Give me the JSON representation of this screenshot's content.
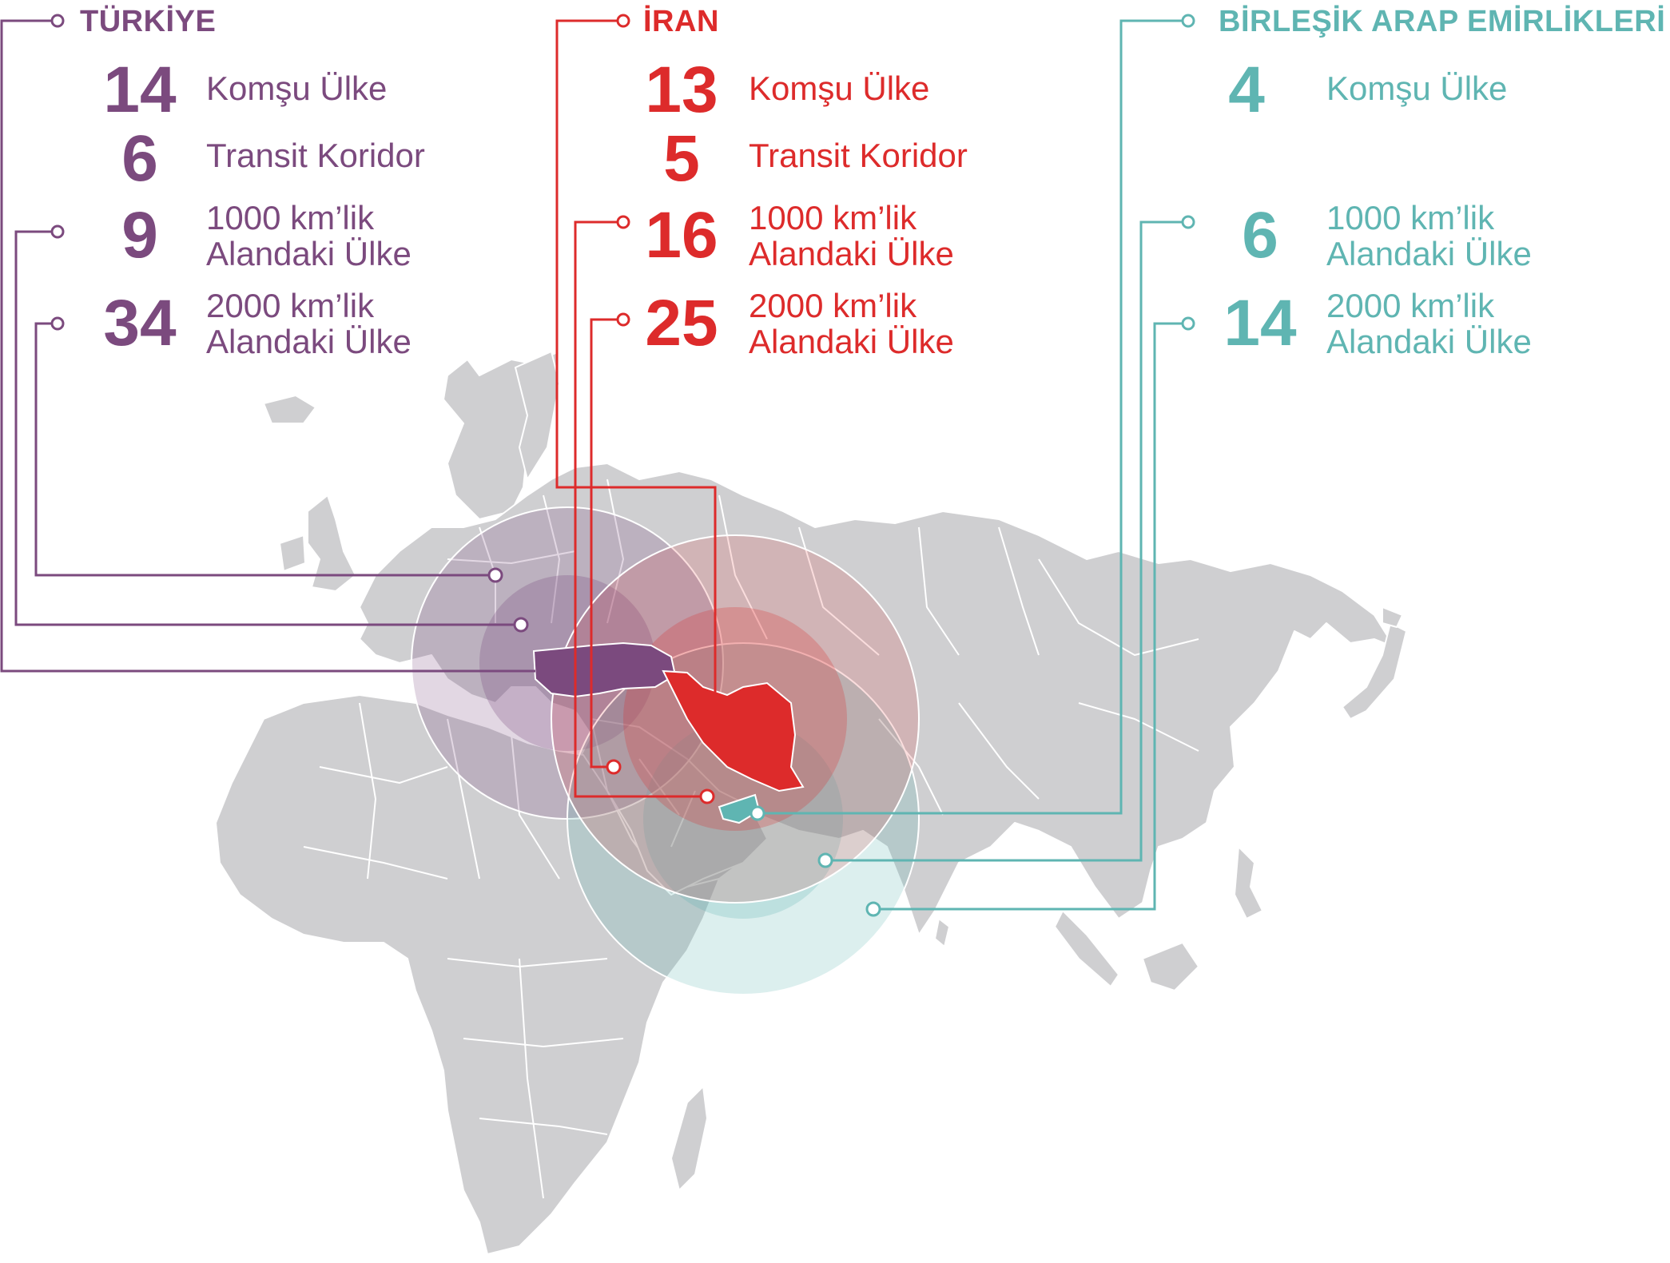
{
  "colors": {
    "turkiye": "#7b4a7e",
    "iran": "#dd2b2b",
    "uae": "#5fb5b2",
    "land": "#cfcfd1",
    "borders": "#ffffff"
  },
  "panels": [
    {
      "id": "turkiye",
      "title": "TÜRKİYE",
      "stats": [
        {
          "value": "14",
          "label_line1": "Komşu Ülke",
          "label_line2": ""
        },
        {
          "value": "6",
          "label_line1": "Transit Koridor",
          "label_line2": ""
        },
        {
          "value": "9",
          "label_line1": "1000 km’lik",
          "label_line2": "Alandaki Ülke"
        },
        {
          "value": "34",
          "label_line1": "2000 km’lik",
          "label_line2": "Alandaki Ülke"
        }
      ]
    },
    {
      "id": "iran",
      "title": "İRAN",
      "stats": [
        {
          "value": "13",
          "label_line1": "Komşu Ülke",
          "label_line2": ""
        },
        {
          "value": "5",
          "label_line1": "Transit Koridor",
          "label_line2": ""
        },
        {
          "value": "16",
          "label_line1": "1000 km’lik",
          "label_line2": "Alandaki Ülke"
        },
        {
          "value": "25",
          "label_line1": "2000 km’lik",
          "label_line2": "Alandaki Ülke"
        }
      ]
    },
    {
      "id": "uae",
      "title": "BİRLEŞİK ARAP EMİRLİKLERİ",
      "stats": [
        {
          "value": "4",
          "label_line1": "Komşu Ülke",
          "label_line2": ""
        },
        {
          "value": "6",
          "label_line1": "1000 km’lik",
          "label_line2": "Alandaki Ülke"
        },
        {
          "value": "14",
          "label_line1": "2000 km’lik",
          "label_line2": "Alandaki Ülke"
        }
      ]
    }
  ]
}
